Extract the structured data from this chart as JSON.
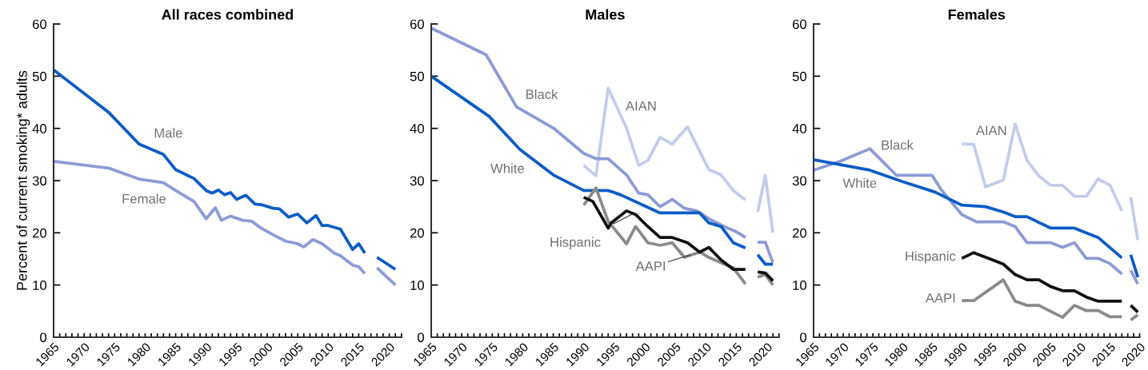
{
  "chart_data": [
    {
      "type": "line",
      "title": "All races combined",
      "ylabel": "Percent of current smoking* adults",
      "xlim": [
        1965,
        2022
      ],
      "ylim": [
        0,
        60
      ],
      "yticks": [
        0,
        10,
        20,
        30,
        40,
        50,
        60
      ],
      "xticks": [
        1965,
        {
          "value": 1966,
          "label": null
        },
        {
          "value": 1967,
          "label": null
        },
        {
          "value": 1968,
          "label": null
        },
        {
          "value": 1969,
          "label": null
        },
        1970,
        {
          "value": 1971,
          "label": null
        },
        {
          "value": 1972,
          "label": null
        },
        {
          "value": 1973,
          "label": null
        },
        {
          "value": 1974,
          "label": null
        },
        1975,
        {
          "value": 1976,
          "label": null
        },
        {
          "value": 1977,
          "label": null
        },
        {
          "value": 1978,
          "label": null
        },
        {
          "value": 1979,
          "label": null
        },
        1980,
        {
          "value": 1981,
          "label": null
        },
        {
          "value": 1982,
          "label": null
        },
        {
          "value": 1983,
          "label": null
        },
        {
          "value": 1984,
          "label": null
        },
        1985,
        {
          "value": 1986,
          "label": null
        },
        {
          "value": 1987,
          "label": null
        },
        {
          "value": 1988,
          "label": null
        },
        {
          "value": 1989,
          "label": null
        },
        1990,
        {
          "value": 1991,
          "label": null
        },
        {
          "value": 1992,
          "label": null
        },
        {
          "value": 1993,
          "label": null
        },
        {
          "value": 1994,
          "label": null
        },
        1995,
        {
          "value": 1996,
          "label": null
        },
        {
          "value": 1997,
          "label": null
        },
        {
          "value": 1998,
          "label": null
        },
        {
          "value": 1999,
          "label": null
        },
        2000,
        {
          "value": 2001,
          "label": null
        },
        {
          "value": 2002,
          "label": null
        },
        {
          "value": 2003,
          "label": null
        },
        {
          "value": 2004,
          "label": null
        },
        2005,
        {
          "value": 2006,
          "label": null
        },
        {
          "value": 2007,
          "label": null
        },
        {
          "value": 2008,
          "label": null
        },
        {
          "value": 2009,
          "label": null
        },
        2010,
        {
          "value": 2011,
          "label": null
        },
        {
          "value": 2012,
          "label": null
        },
        {
          "value": 2013,
          "label": null
        },
        {
          "value": 2014,
          "label": null
        },
        2015,
        {
          "value": 2016,
          "label": null
        },
        {
          "value": 2017,
          "label": null
        },
        {
          "value": 2018,
          "label": null
        },
        {
          "value": 2019,
          "label": null
        },
        2020,
        {
          "value": 2021,
          "label": null
        },
        {
          "value": 2022,
          "label": null
        }
      ],
      "series": [
        {
          "name": "Male",
          "color": "#0b5cc5",
          "x": [
            1965,
            1974,
            1979,
            1983,
            1985,
            1988,
            1990,
            1991,
            1992,
            1993,
            1994,
            1995,
            1996.5,
            1998,
            1999,
            2001,
            2002,
            2003.5,
            2005,
            2006.5,
            2008,
            2009,
            2010,
            2012,
            2014,
            2015,
            2016,
            2017,
            2018,
            2021
          ],
          "values": [
            51.2,
            43.1,
            37,
            35,
            32.1,
            30.4,
            28.1,
            27.6,
            28.2,
            27.3,
            27.7,
            26.4,
            27.2,
            25.5,
            25.4,
            24.7,
            24.6,
            23,
            23.6,
            21.9,
            23.3,
            21.4,
            21.4,
            20.7,
            16.8,
            17.9,
            16.1,
            null,
            15.3,
            13
          ]
        },
        {
          "name": "Female",
          "color": "#8c9ad6",
          "x": [
            1965,
            1974,
            1979,
            1983,
            1985,
            1988,
            1990,
            1991.5,
            1992.5,
            1994,
            1996,
            1997.5,
            1999,
            2001,
            2003,
            2005,
            2006,
            2007.5,
            2009,
            2011,
            2012,
            2014,
            2015,
            2016,
            2017,
            2018,
            2021
          ],
          "values": [
            33.7,
            32.4,
            30.3,
            29.6,
            28.1,
            26,
            22.7,
            24.8,
            22.4,
            23.2,
            22.4,
            22.2,
            20.9,
            19.6,
            18.4,
            17.9,
            17.3,
            18.7,
            17.9,
            16.1,
            15.6,
            13.8,
            13.5,
            12.2,
            null,
            13.3,
            10
          ]
        }
      ]
    },
    {
      "type": "line",
      "title": "Males",
      "xlim": [
        1965,
        2022
      ],
      "ylim": [
        0,
        60
      ],
      "yticks": [
        0,
        10,
        20,
        30,
        40,
        50,
        60
      ],
      "xticks": [
        1965,
        {
          "value": 1966,
          "label": null
        },
        {
          "value": 1967,
          "label": null
        },
        {
          "value": 1968,
          "label": null
        },
        {
          "value": 1969,
          "label": null
        },
        1970,
        {
          "value": 1971,
          "label": null
        },
        {
          "value": 1972,
          "label": null
        },
        {
          "value": 1973,
          "label": null
        },
        {
          "value": 1974,
          "label": null
        },
        1975,
        {
          "value": 1976,
          "label": null
        },
        {
          "value": 1977,
          "label": null
        },
        {
          "value": 1978,
          "label": null
        },
        {
          "value": 1979,
          "label": null
        },
        1980,
        {
          "value": 1981,
          "label": null
        },
        {
          "value": 1982,
          "label": null
        },
        {
          "value": 1983,
          "label": null
        },
        {
          "value": 1984,
          "label": null
        },
        1985,
        {
          "value": 1986,
          "label": null
        },
        {
          "value": 1987,
          "label": null
        },
        {
          "value": 1988,
          "label": null
        },
        {
          "value": 1989,
          "label": null
        },
        1990,
        {
          "value": 1991,
          "label": null
        },
        {
          "value": 1992,
          "label": null
        },
        {
          "value": 1993,
          "label": null
        },
        {
          "value": 1994,
          "label": null
        },
        1995,
        {
          "value": 1996,
          "label": null
        },
        {
          "value": 1997,
          "label": null
        },
        {
          "value": 1998,
          "label": null
        },
        {
          "value": 1999,
          "label": null
        },
        2000,
        {
          "value": 2001,
          "label": null
        },
        {
          "value": 2002,
          "label": null
        },
        {
          "value": 2003,
          "label": null
        },
        {
          "value": 2004,
          "label": null
        },
        2005,
        {
          "value": 2006,
          "label": null
        },
        {
          "value": 2007,
          "label": null
        },
        {
          "value": 2008,
          "label": null
        },
        {
          "value": 2009,
          "label": null
        },
        2010,
        {
          "value": 2011,
          "label": null
        },
        {
          "value": 2012,
          "label": null
        },
        {
          "value": 2013,
          "label": null
        },
        {
          "value": 2014,
          "label": null
        },
        2015,
        {
          "value": 2016,
          "label": null
        },
        {
          "value": 2017,
          "label": null
        },
        {
          "value": 2018,
          "label": null
        },
        {
          "value": 2019,
          "label": null
        },
        2020,
        {
          "value": 2021,
          "label": null
        },
        {
          "value": 2022,
          "label": null
        }
      ],
      "series": [
        {
          "name": "AIAN",
          "color": "#c4cbeb",
          "x": [
            1990,
            1992,
            1994,
            1997,
            1999,
            2000.5,
            2002.5,
            2004.5,
            2007,
            2010.5,
            2012.5,
            2014.5,
            2016.5,
            2017.5,
            2018.5,
            2019.75,
            2021
          ],
          "values": [
            32.9,
            30.9,
            47.7,
            40.1,
            32.9,
            33.9,
            38.3,
            37,
            40.3,
            32.1,
            31.1,
            28.1,
            26.3,
            null,
            24,
            31,
            20
          ]
        },
        {
          "name": "Black",
          "color": "#8c9ad6",
          "x": [
            1965,
            1974,
            1979,
            1985,
            1990,
            1992,
            1994,
            1997,
            1999,
            2000.5,
            2002.5,
            2004.5,
            2006.5,
            2008.5,
            2010.5,
            2013,
            2015,
            2016.5,
            2017.5,
            2018.5,
            2019.75,
            2021
          ],
          "values": [
            59.2,
            54.1,
            44.1,
            40.1,
            35.2,
            34.2,
            34.2,
            31.1,
            27.6,
            27.3,
            25,
            26.4,
            24.7,
            24.2,
            22.7,
            21.2,
            20.2,
            19.1,
            null,
            18.2,
            18.2,
            14.3
          ]
        },
        {
          "name": "White",
          "color": "#0b5cc5",
          "x": [
            1965,
            1974.5,
            1979.5,
            1985,
            1990,
            1994,
            1996,
            2002.5,
            2009,
            2010.5,
            2012.5,
            2014.5,
            2016.5,
            2017.5,
            2018.5,
            2019.75,
            2021
          ],
          "values": [
            50,
            42.3,
            36,
            31.1,
            28.1,
            28.1,
            27.3,
            23.8,
            23.8,
            21.9,
            21.2,
            18.1,
            17.1,
            null,
            15.8,
            14,
            14
          ]
        },
        {
          "name": "AAPI",
          "color": "#8a8a8a",
          "x": [
            1990,
            1992,
            1994,
            1997,
            1998.5,
            2000.5,
            2002.5,
            2004.5,
            2006.5,
            2009,
            2010.5,
            2013,
            2014.5,
            2016.5,
            2017.5,
            2018.5,
            2019.75,
            2021
          ],
          "values": [
            25.3,
            28.6,
            22.2,
            17.9,
            21.2,
            18.1,
            17.6,
            18.1,
            15.3,
            16.3,
            15.3,
            14,
            13.3,
            10.2,
            null,
            11.5,
            12,
            10
          ]
        },
        {
          "name": "Hispanic",
          "color": "#111111",
          "x": [
            1990,
            1991.5,
            1994,
            1994.5,
            1997,
            1998.5,
            2000.5,
            2002.5,
            2004.5,
            2007,
            2009,
            2010.5,
            2012.5,
            2014.5,
            2016.5,
            2017.5,
            2018.5,
            2019.75,
            2021
          ],
          "values": [
            26.8,
            26,
            20.9,
            21.9,
            24.2,
            23.5,
            21.2,
            19.1,
            19.1,
            18.1,
            16.3,
            17.2,
            14.8,
            13,
            13,
            null,
            12.5,
            12.3,
            10.8
          ]
        }
      ]
    },
    {
      "type": "line",
      "title": "Females",
      "xlim": [
        1965,
        2020
      ],
      "ylim": [
        0,
        60
      ],
      "yticks": [
        0,
        10,
        20,
        30,
        40,
        50,
        60
      ],
      "xticks": [
        1965,
        {
          "value": 1966,
          "label": null
        },
        {
          "value": 1967,
          "label": null
        },
        {
          "value": 1968,
          "label": null
        },
        {
          "value": 1969,
          "label": null
        },
        1970,
        {
          "value": 1971,
          "label": null
        },
        {
          "value": 1972,
          "label": null
        },
        {
          "value": 1973,
          "label": null
        },
        {
          "value": 1974,
          "label": null
        },
        1975,
        {
          "value": 1976,
          "label": null
        },
        {
          "value": 1977,
          "label": null
        },
        {
          "value": 1978,
          "label": null
        },
        {
          "value": 1979,
          "label": null
        },
        1980,
        {
          "value": 1981,
          "label": null
        },
        {
          "value": 1982,
          "label": null
        },
        {
          "value": 1983,
          "label": null
        },
        {
          "value": 1984,
          "label": null
        },
        1985,
        {
          "value": 1986,
          "label": null
        },
        {
          "value": 1987,
          "label": null
        },
        {
          "value": 1988,
          "label": null
        },
        {
          "value": 1989,
          "label": null
        },
        1990,
        {
          "value": 1991,
          "label": null
        },
        {
          "value": 1992,
          "label": null
        },
        {
          "value": 1993,
          "label": null
        },
        {
          "value": 1994,
          "label": null
        },
        1995,
        {
          "value": 1996,
          "label": null
        },
        {
          "value": 1997,
          "label": null
        },
        {
          "value": 1998,
          "label": null
        },
        {
          "value": 1999,
          "label": null
        },
        2000,
        {
          "value": 2001,
          "label": null
        },
        {
          "value": 2002,
          "label": null
        },
        {
          "value": 2003,
          "label": null
        },
        {
          "value": 2004,
          "label": null
        },
        2005,
        {
          "value": 2006,
          "label": null
        },
        {
          "value": 2007,
          "label": null
        },
        {
          "value": 2008,
          "label": null
        },
        {
          "value": 2009,
          "label": null
        },
        2010,
        {
          "value": 2011,
          "label": null
        },
        {
          "value": 2012,
          "label": null
        },
        {
          "value": 2013,
          "label": null
        },
        {
          "value": 2014,
          "label": null
        },
        2015,
        {
          "value": 2016,
          "label": null
        },
        {
          "value": 2017,
          "label": null
        },
        {
          "value": 2018,
          "label": null
        },
        {
          "value": 2019,
          "label": null
        },
        2020
      ],
      "series": [
        {
          "name": "AIAN",
          "color": "#c4cbeb",
          "x": [
            1990,
            1992,
            1994,
            1997,
            1999,
            2001,
            2003,
            2005,
            2007,
            2009,
            2011,
            2013,
            2015,
            2017,
            2018,
            2018.5,
            2019.7
          ],
          "values": [
            37,
            37,
            28.8,
            30.1,
            40.8,
            33.9,
            30.9,
            29.1,
            29.1,
            27,
            27,
            30.3,
            29.1,
            24.2,
            null,
            26.8,
            18.6
          ]
        },
        {
          "name": "Black",
          "color": "#8c9ad6",
          "x": [
            1965,
            1969.5,
            1974.5,
            1979,
            1985,
            1986.5,
            1990,
            1992.5,
            1997,
            1999,
            2001,
            2005,
            2007,
            2009,
            2011,
            2013,
            2015,
            2017,
            2018,
            2018.5,
            2019.7
          ],
          "values": [
            32,
            33.7,
            36.1,
            31,
            31,
            28.3,
            23.5,
            22.1,
            22.1,
            21.2,
            18.1,
            18.1,
            17.2,
            18.1,
            15.1,
            15.1,
            14.1,
            12.1,
            null,
            12.8,
            10.2
          ]
        },
        {
          "name": "White",
          "color": "#0b5cc5",
          "x": [
            1965,
            1974.5,
            1980,
            1985.5,
            1990,
            1994,
            1997,
            1999,
            2001,
            2005,
            2009,
            2013,
            2017,
            2018,
            2018.5,
            2019.7
          ],
          "values": [
            34,
            32,
            29.8,
            27.8,
            25.3,
            25,
            24,
            23.1,
            23.1,
            20.9,
            20.9,
            19.1,
            15.2,
            null,
            15.8,
            11.5
          ]
        },
        {
          "name": "Hispanic",
          "color": "#111111",
          "x": [
            1990,
            1992,
            1994.5,
            1997,
            1999,
            2001,
            2003,
            2005,
            2007,
            2009,
            2011,
            2013,
            2017,
            2018,
            2018.5,
            2019.7
          ],
          "values": [
            15.1,
            16.2,
            15.1,
            14,
            12,
            11,
            11,
            9.7,
            8.9,
            8.9,
            7.7,
            6.9,
            6.9,
            null,
            6.1,
            4.8
          ]
        },
        {
          "name": "AAPI",
          "color": "#8a8a8a",
          "x": [
            1990,
            1992,
            1997,
            1999,
            2001,
            2003,
            2007,
            2009,
            2011,
            2013,
            2015,
            2017,
            2018,
            2018.5,
            2019.7
          ],
          "values": [
            7,
            7,
            11,
            6.9,
            6.1,
            6.1,
            3.8,
            6.1,
            5.1,
            5.1,
            3.9,
            3.9,
            null,
            3.3,
            4.3
          ]
        }
      ]
    }
  ]
}
